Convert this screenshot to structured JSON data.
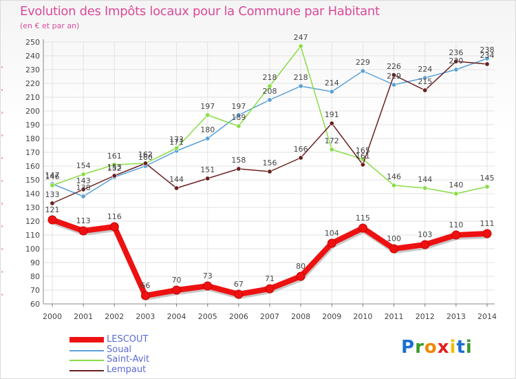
{
  "title": "Evolution des Impôts locaux pour la Commune par Habitant",
  "subtitle": "(en € et par an)",
  "logo": {
    "text": "Proxiti",
    "letters": [
      "P",
      "r",
      "o",
      "x",
      "i",
      "t",
      "i"
    ],
    "colors": [
      "#1a6fd1",
      "#3a9a2a",
      "#f08a00",
      "#e02020",
      "#f0c000",
      "#1a6fd1",
      "#3a9a2a"
    ]
  },
  "chart_data": {
    "type": "line",
    "title": "Evolution des Impôts locaux pour la Commune par Habitant",
    "ylabel": "(en € et par an)",
    "xlabel": "",
    "x": [
      "2000",
      "2001",
      "2002",
      "2003",
      "2004",
      "2005",
      "2006",
      "2007",
      "2008",
      "2009",
      "2010",
      "2011",
      "2012",
      "2013",
      "2014"
    ],
    "ylim": [
      60,
      250
    ],
    "yticks": [
      60,
      70,
      80,
      90,
      100,
      110,
      120,
      130,
      140,
      150,
      160,
      170,
      180,
      190,
      200,
      210,
      220,
      230,
      240,
      250
    ],
    "grid": true,
    "legend": "bottom-left",
    "series": [
      {
        "name": "LESCOUT",
        "color": "#ee1111",
        "values": [
          121,
          113,
          116,
          66,
          70,
          73,
          67,
          71,
          80,
          104,
          115,
          100,
          103,
          110,
          111
        ]
      },
      {
        "name": "Soual",
        "color": "#5aa0d8",
        "values": [
          147,
          138,
          152,
          160,
          171,
          180,
          197,
          208,
          218,
          214,
          229,
          219,
          224,
          230,
          238
        ]
      },
      {
        "name": "Saint-Avit",
        "color": "#88dd44",
        "values": [
          146,
          154,
          161,
          162,
          173,
          197,
          189,
          218,
          247,
          172,
          165,
          146,
          144,
          140,
          145
        ]
      },
      {
        "name": "Lempaut",
        "color": "#6a1f1f",
        "values": [
          133,
          143,
          153,
          162,
          144,
          151,
          158,
          156,
          166,
          191,
          161,
          226,
          215,
          236,
          234
        ]
      }
    ]
  }
}
